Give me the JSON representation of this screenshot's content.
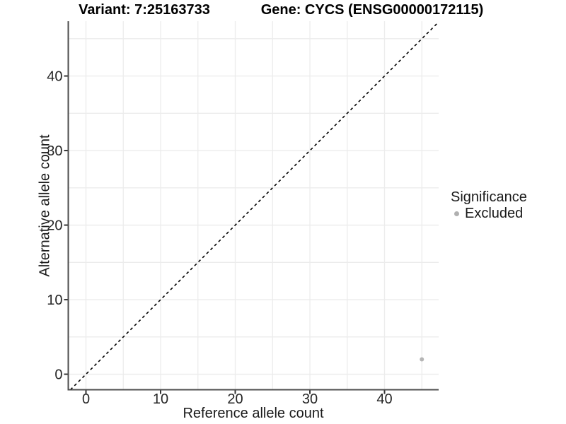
{
  "header": {
    "variant_title": "Variant: 7:25163733",
    "gene_title": "Gene: CYCS (ENSG00000172115)"
  },
  "chart_data": {
    "type": "scatter",
    "xlabel": "Reference allele count",
    "ylabel": "Alternative allele count",
    "xlim": [
      -2.37,
      47.25
    ],
    "ylim": [
      -2.08,
      47.35
    ],
    "x_ticks": [
      0,
      10,
      20,
      30,
      40
    ],
    "y_ticks": [
      0,
      10,
      20,
      30,
      40
    ],
    "grid_values": [
      0,
      5,
      10,
      15,
      20,
      25,
      30,
      35,
      40,
      45
    ],
    "grid_on": true,
    "points": [
      {
        "x": 45,
        "y": 2,
        "series": "Excluded"
      }
    ],
    "reference_line": {
      "slope": 1,
      "intercept": 0,
      "style": "dashed"
    },
    "legend": {
      "title": "Significance",
      "position": "right",
      "items": [
        {
          "label": "Excluded",
          "color": "#b5b5b5"
        }
      ]
    },
    "colors": {
      "point": "#b5b5b5",
      "grid": "#ececec",
      "axis_line": "#4d4d4d",
      "tick_mark": "#333333",
      "tick_label": "#262626",
      "reference_line": "#000000"
    }
  }
}
